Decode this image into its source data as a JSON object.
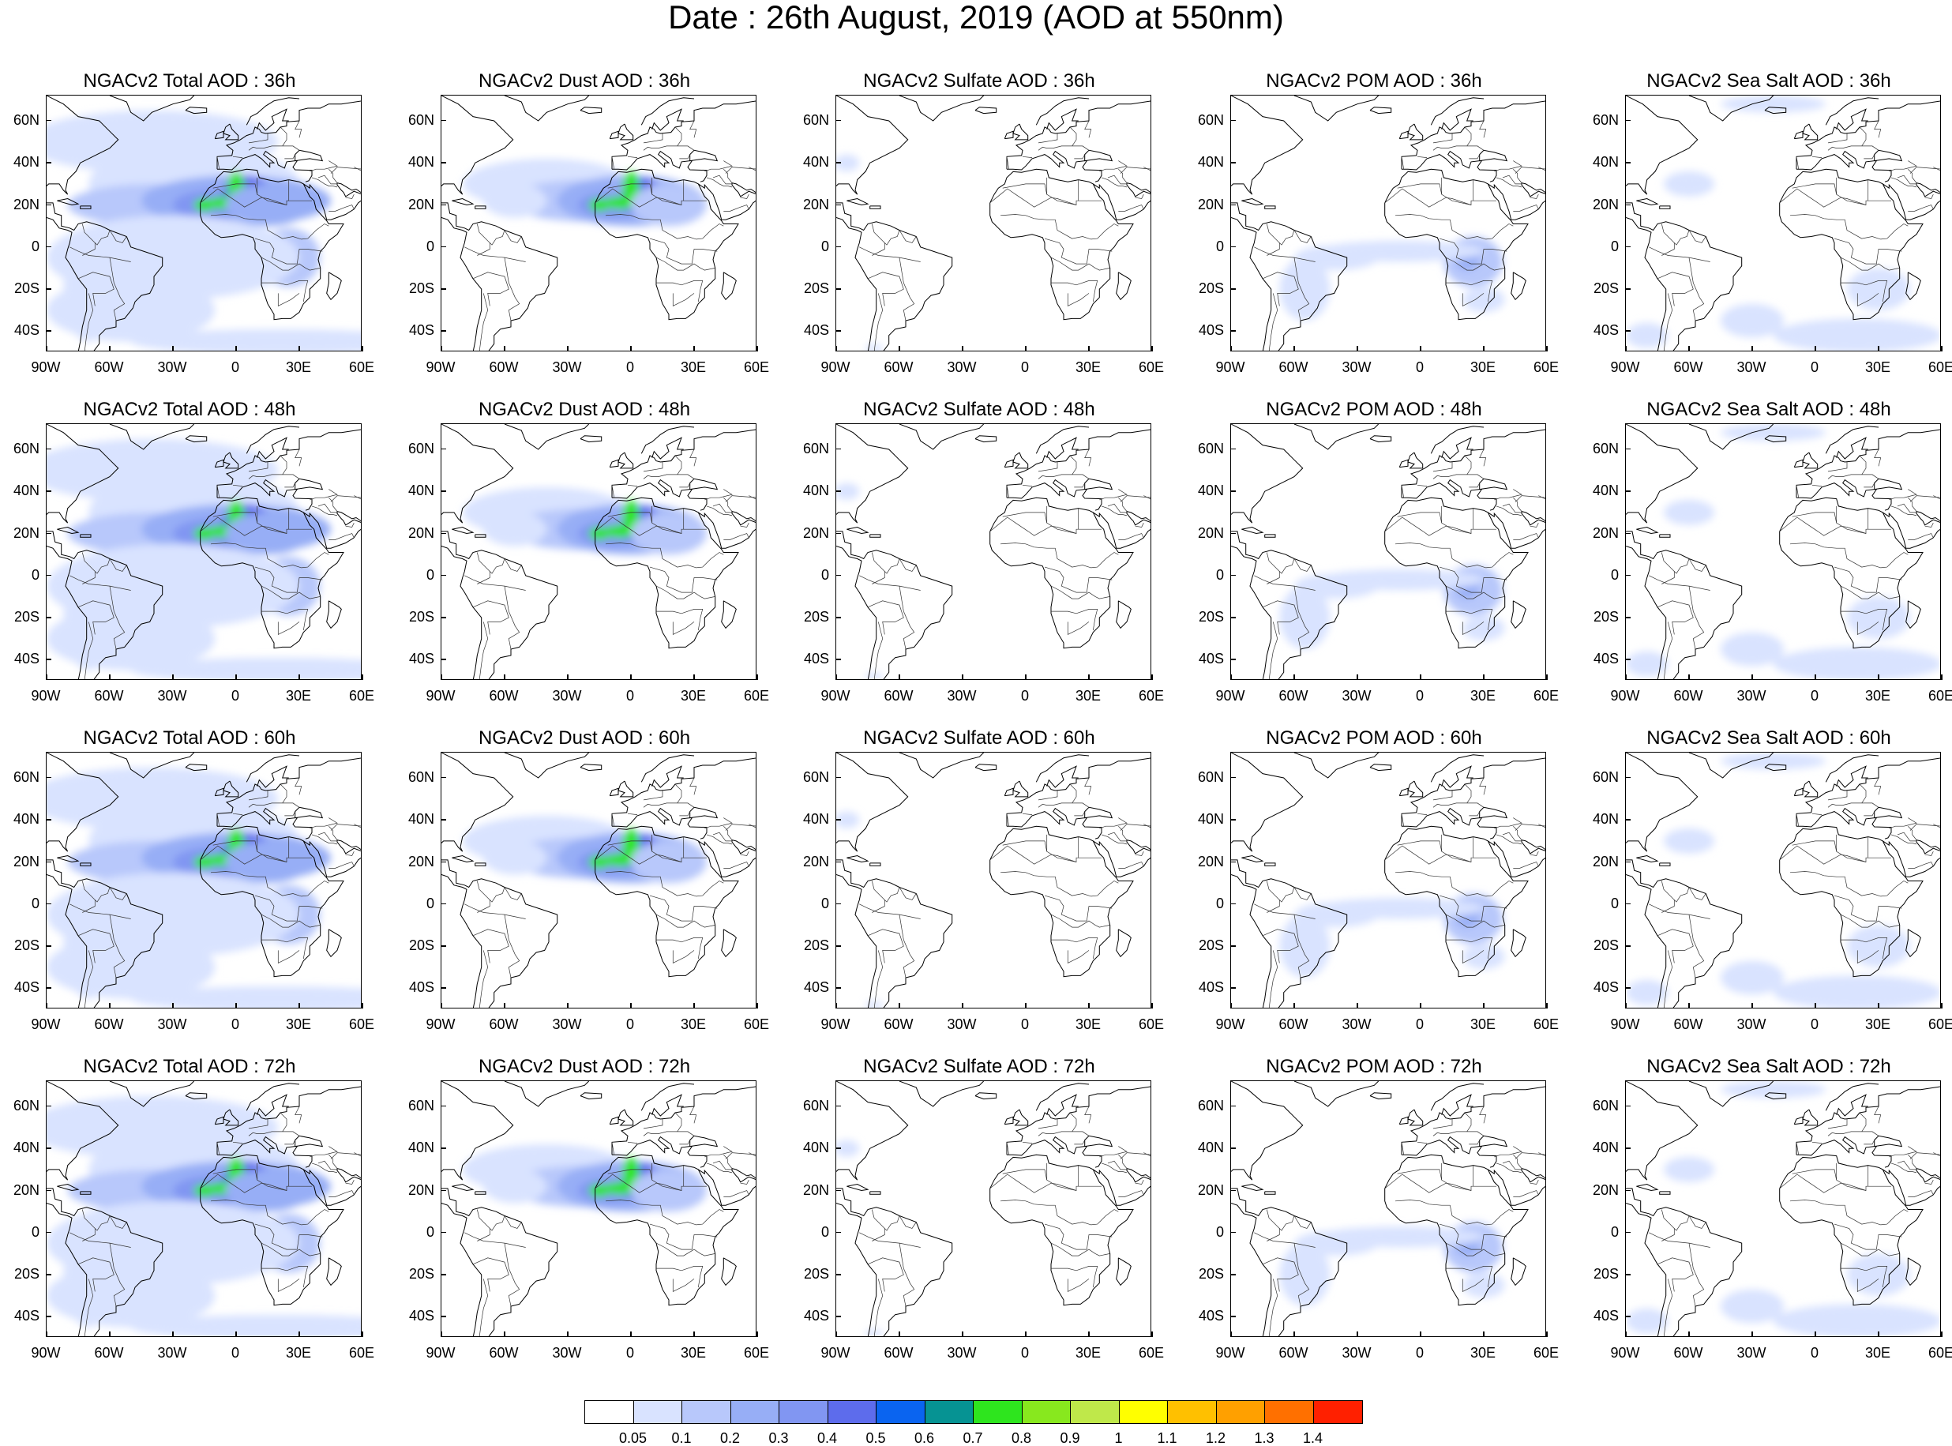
{
  "title": "Date : 26th August, 2019 (AOD at 550nm)",
  "lat_labels": [
    "60N",
    "40N",
    "20N",
    "0",
    "20S",
    "40S"
  ],
  "lon_labels": [
    "90W",
    "60W",
    "30W",
    "0",
    "30E",
    "60E"
  ],
  "panels": [
    {
      "title": "NGACv2 Total AOD : 36h",
      "species": "total"
    },
    {
      "title": "NGACv2 Dust AOD : 36h",
      "species": "dust"
    },
    {
      "title": "NGACv2 Sulfate AOD : 36h",
      "species": "sulfate"
    },
    {
      "title": "NGACv2 POM AOD : 36h",
      "species": "pom"
    },
    {
      "title": "NGACv2 Sea Salt AOD : 36h",
      "species": "seasalt"
    },
    {
      "title": "NGACv2 Total AOD : 48h",
      "species": "total"
    },
    {
      "title": "NGACv2 Dust AOD : 48h",
      "species": "dust"
    },
    {
      "title": "NGACv2 Sulfate AOD : 48h",
      "species": "sulfate"
    },
    {
      "title": "NGACv2 POM AOD : 48h",
      "species": "pom"
    },
    {
      "title": "NGACv2 Sea Salt AOD : 48h",
      "species": "seasalt"
    },
    {
      "title": "NGACv2 Total AOD : 60h",
      "species": "total"
    },
    {
      "title": "NGACv2 Dust AOD : 60h",
      "species": "dust"
    },
    {
      "title": "NGACv2 Sulfate AOD : 60h",
      "species": "sulfate"
    },
    {
      "title": "NGACv2 POM AOD : 60h",
      "species": "pom"
    },
    {
      "title": "NGACv2 Sea Salt AOD : 60h",
      "species": "seasalt"
    },
    {
      "title": "NGACv2 Total AOD : 72h",
      "species": "total"
    },
    {
      "title": "NGACv2 Dust AOD : 72h",
      "species": "dust"
    },
    {
      "title": "NGACv2 Sulfate AOD : 72h",
      "species": "sulfate"
    },
    {
      "title": "NGACv2 POM AOD : 72h",
      "species": "pom"
    },
    {
      "title": "NGACv2 Sea Salt  AOD : 72h",
      "species": "seasalt"
    }
  ],
  "colorbar": {
    "colors": [
      "#ffffff",
      "#d9e3ff",
      "#b8c8fb",
      "#97aef6",
      "#8196f2",
      "#5d6cec",
      "#0a64f0",
      "#069393",
      "#2ee51e",
      "#88e81e",
      "#bfe84a",
      "#ffff00",
      "#ffc000",
      "#ffa000",
      "#ff7000",
      "#ff2000"
    ],
    "labels": [
      "0.05",
      "0.1",
      "0.2",
      "0.3",
      "0.4",
      "0.5",
      "0.6",
      "0.7",
      "0.8",
      "0.9",
      "1",
      "1.1",
      "1.2",
      "1.3",
      "1.4"
    ]
  }
}
